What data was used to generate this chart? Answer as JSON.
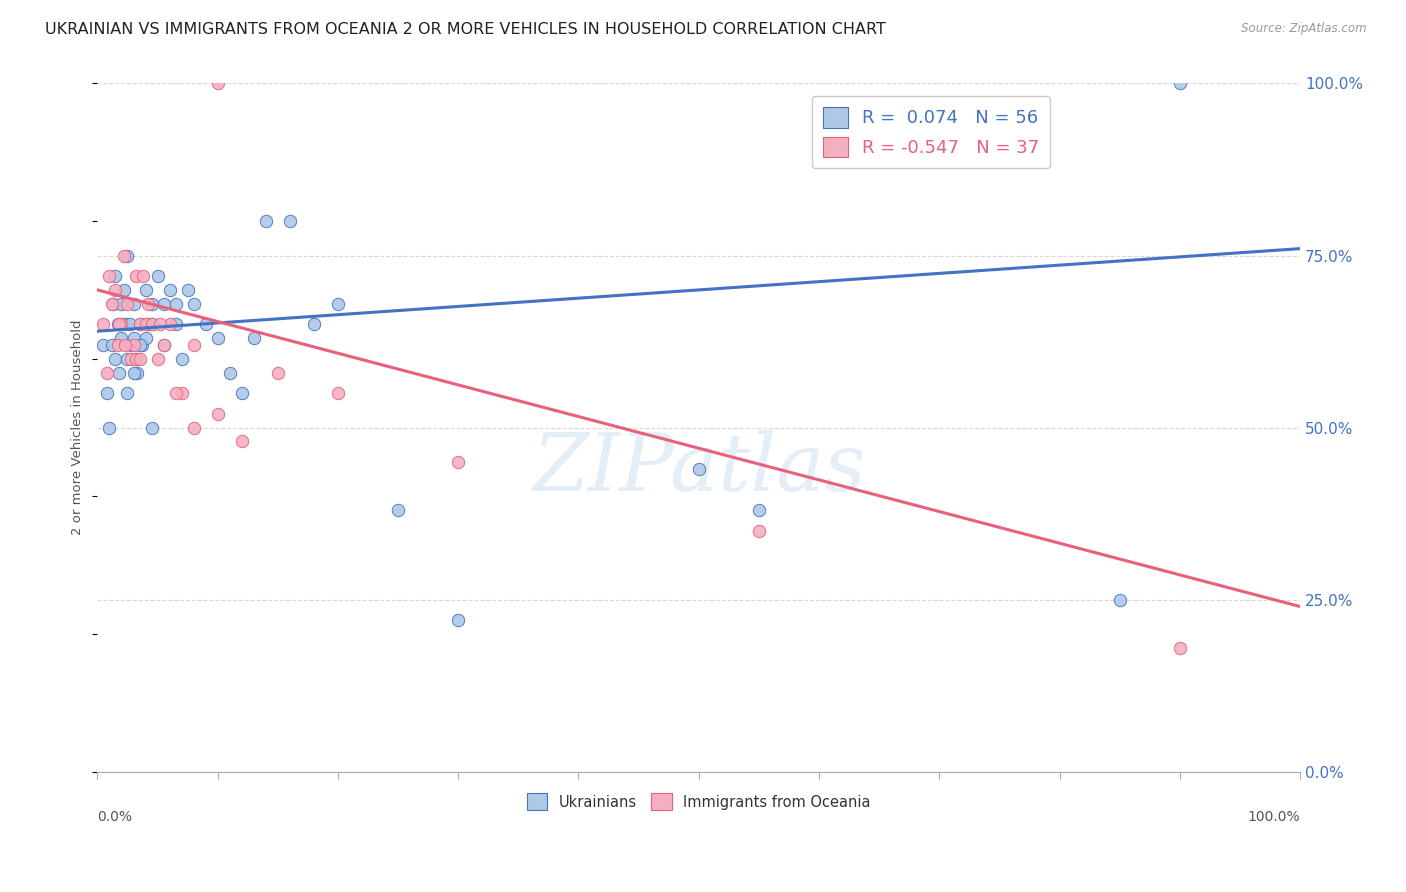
{
  "title": "UKRAINIAN VS IMMIGRANTS FROM OCEANIA 2 OR MORE VEHICLES IN HOUSEHOLD CORRELATION CHART",
  "source": "Source: ZipAtlas.com",
  "ylabel": "2 or more Vehicles in Household",
  "ytick_labels": [
    "0.0%",
    "25.0%",
    "50.0%",
    "75.0%",
    "100.0%"
  ],
  "ytick_values": [
    0,
    25,
    50,
    75,
    100
  ],
  "legend_blue_r": "0.074",
  "legend_blue_n": "56",
  "legend_pink_r": "-0.547",
  "legend_pink_n": "37",
  "blue_dot_color": "#aec8e8",
  "blue_line_color": "#4472c4",
  "pink_dot_color": "#f4afc0",
  "pink_line_color": "#e8607a",
  "watermark_text": "ZIPatlas",
  "blue_scatter_x": [
    0.5,
    0.8,
    1.0,
    1.2,
    1.3,
    1.5,
    1.5,
    1.7,
    1.8,
    2.0,
    2.0,
    2.2,
    2.3,
    2.5,
    2.5,
    2.7,
    2.8,
    3.0,
    3.0,
    3.2,
    3.3,
    3.5,
    3.7,
    4.0,
    4.0,
    4.2,
    4.5,
    5.0,
    5.5,
    6.0,
    6.5,
    7.0,
    8.0,
    9.0,
    10.0,
    11.0,
    12.0,
    14.0,
    16.0,
    18.0,
    20.0,
    25.0,
    30.0,
    50.0,
    55.0,
    85.0,
    90.0,
    2.5,
    3.0,
    3.5,
    4.5,
    5.5,
    6.5,
    7.5,
    4.5,
    13.0
  ],
  "blue_scatter_y": [
    62,
    55,
    50,
    62,
    68,
    60,
    72,
    65,
    58,
    63,
    68,
    70,
    65,
    60,
    75,
    65,
    62,
    63,
    68,
    60,
    58,
    65,
    62,
    63,
    70,
    65,
    68,
    72,
    68,
    70,
    65,
    60,
    68,
    65,
    63,
    58,
    55,
    80,
    80,
    65,
    68,
    38,
    22,
    44,
    38,
    25,
    100,
    55,
    58,
    62,
    65,
    62,
    68,
    70,
    50,
    63
  ],
  "pink_scatter_x": [
    0.5,
    0.8,
    1.0,
    1.2,
    1.5,
    1.7,
    2.0,
    2.2,
    2.5,
    2.8,
    3.0,
    3.2,
    3.5,
    3.8,
    4.0,
    4.5,
    5.0,
    5.5,
    6.0,
    7.0,
    8.0,
    10.0,
    15.0,
    20.0,
    30.0,
    55.0,
    90.0,
    1.8,
    2.3,
    3.2,
    4.2,
    5.2,
    6.5,
    8.0,
    10.0,
    12.0,
    3.5
  ],
  "pink_scatter_y": [
    65,
    58,
    72,
    68,
    70,
    62,
    65,
    75,
    68,
    60,
    62,
    72,
    65,
    72,
    65,
    65,
    60,
    62,
    65,
    55,
    62,
    100,
    58,
    55,
    45,
    35,
    18,
    65,
    62,
    60,
    68,
    65,
    55,
    50,
    52,
    48,
    60
  ],
  "blue_trend_x": [
    0,
    100
  ],
  "blue_trend_y": [
    64,
    76
  ],
  "pink_trend_x": [
    0,
    100
  ],
  "pink_trend_y": [
    70,
    24
  ],
  "background_color": "#ffffff",
  "grid_color": "#d8d8d8",
  "title_fontsize": 11.5,
  "dot_size": 80,
  "xtick_positions": [
    0,
    10,
    20,
    30,
    40,
    50,
    60,
    70,
    80,
    90,
    100
  ]
}
